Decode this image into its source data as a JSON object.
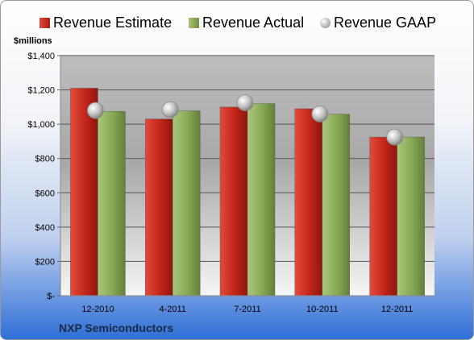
{
  "chart_data": {
    "type": "bar",
    "title": "",
    "ylabel": "$millions",
    "xlabel": "",
    "company": "NXP Semiconductors",
    "categories": [
      "12-2010",
      "4-2011",
      "7-2011",
      "10-2011",
      "12-2011"
    ],
    "series": [
      {
        "name": "Revenue Estimate",
        "type": "bar",
        "color": "#c0392b",
        "values": [
          1210,
          1030,
          1100,
          1090,
          925
        ]
      },
      {
        "name": "Revenue Actual",
        "type": "bar",
        "color": "#8cac5a",
        "values": [
          1075,
          1078,
          1120,
          1058,
          925
        ]
      },
      {
        "name": "Revenue GAAP",
        "type": "marker",
        "color": "#c8c8c8",
        "values": [
          1080,
          1085,
          1125,
          1060,
          925
        ]
      }
    ],
    "ylim": [
      0,
      1400
    ],
    "yticks": [
      0,
      200,
      400,
      600,
      800,
      1000,
      1200,
      1400
    ],
    "ytick_labels": [
      "$-",
      "$200",
      "$400",
      "$600",
      "$800",
      "$1,000",
      "$1,200",
      "$1,400"
    ],
    "grid": true,
    "legend_position": "top"
  }
}
